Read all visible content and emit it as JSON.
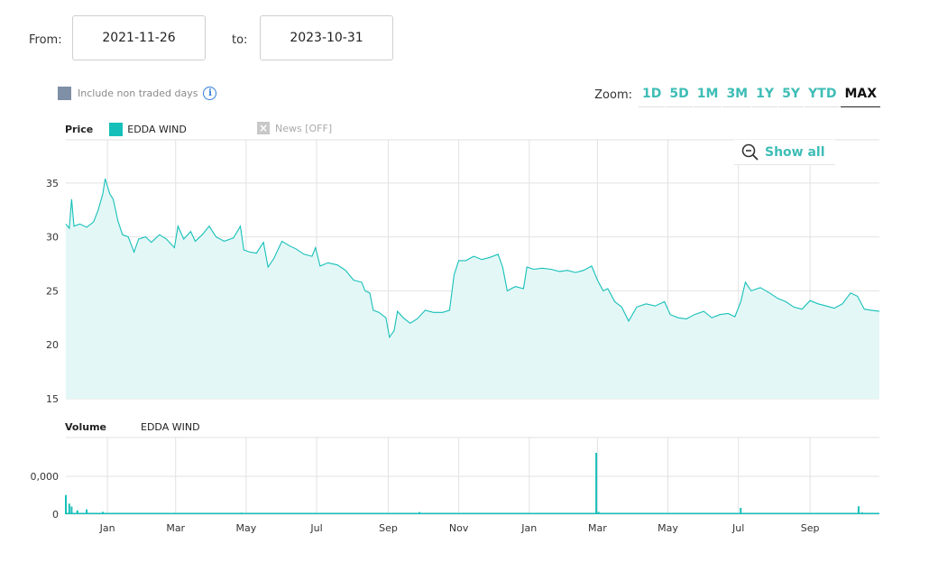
{
  "date_range": {
    "from_label": "From:",
    "from_value": "2021-11-26",
    "to_label": "to:",
    "to_value": "2023-10-31"
  },
  "options": {
    "non_traded_days_label": "Include non traded days",
    "info_icon": "info-icon"
  },
  "zoom": {
    "label": "Zoom:",
    "buttons": [
      "1D",
      "5D",
      "1M",
      "3M",
      "1Y",
      "5Y",
      "YTD",
      "MAX"
    ],
    "active": "MAX"
  },
  "legend": {
    "price_label": "Price",
    "series_name": "EDDA WIND",
    "news_label": "News [OFF]",
    "volume_label": "Volume",
    "volume_series_name": "EDDA WIND"
  },
  "show_all_label": "Show all",
  "colors": {
    "accent": "#3ebdb6",
    "line": "#16c0b9",
    "fill": "#e3f7f6"
  },
  "chart_data": [
    {
      "type": "area",
      "title": "Price",
      "series_name": "EDDA WIND",
      "ylim": [
        15,
        39
      ],
      "y_ticks": [
        15,
        20,
        25,
        30,
        35
      ],
      "x_tick_labels": [
        "Jan",
        "Mar",
        "May",
        "Jul",
        "Sep",
        "Nov",
        "Jan",
        "Mar",
        "May",
        "Jul",
        "Sep"
      ],
      "x_tick_dates": [
        "2022-01-01",
        "2022-03-01",
        "2022-05-01",
        "2022-07-01",
        "2022-09-01",
        "2022-11-01",
        "2023-01-01",
        "2023-03-01",
        "2023-05-01",
        "2023-07-01",
        "2023-09-01"
      ],
      "grid": true,
      "points": [
        [
          "2021-11-26",
          31.2
        ],
        [
          "2021-11-29",
          30.8
        ],
        [
          "2021-12-01",
          33.5
        ],
        [
          "2021-12-03",
          31.0
        ],
        [
          "2021-12-08",
          31.2
        ],
        [
          "2021-12-14",
          30.9
        ],
        [
          "2021-12-20",
          31.4
        ],
        [
          "2021-12-24",
          32.5
        ],
        [
          "2021-12-28",
          34.0
        ],
        [
          "2021-12-30",
          35.4
        ],
        [
          "2022-01-03",
          34.0
        ],
        [
          "2022-01-06",
          33.5
        ],
        [
          "2022-01-10",
          31.5
        ],
        [
          "2022-01-14",
          30.2
        ],
        [
          "2022-01-19",
          30.0
        ],
        [
          "2022-01-24",
          28.6
        ],
        [
          "2022-01-28",
          29.8
        ],
        [
          "2022-02-03",
          30.0
        ],
        [
          "2022-02-08",
          29.5
        ],
        [
          "2022-02-15",
          30.2
        ],
        [
          "2022-02-21",
          29.8
        ],
        [
          "2022-02-28",
          29.0
        ],
        [
          "2022-03-03",
          31.0
        ],
        [
          "2022-03-08",
          29.8
        ],
        [
          "2022-03-14",
          30.5
        ],
        [
          "2022-03-18",
          29.6
        ],
        [
          "2022-03-24",
          30.2
        ],
        [
          "2022-03-30",
          31.0
        ],
        [
          "2022-04-05",
          30.0
        ],
        [
          "2022-04-12",
          29.6
        ],
        [
          "2022-04-20",
          29.9
        ],
        [
          "2022-04-26",
          31.0
        ],
        [
          "2022-04-29",
          28.8
        ],
        [
          "2022-05-04",
          28.6
        ],
        [
          "2022-05-10",
          28.5
        ],
        [
          "2022-05-16",
          29.5
        ],
        [
          "2022-05-20",
          27.2
        ],
        [
          "2022-05-25",
          28.0
        ],
        [
          "2022-06-01",
          29.6
        ],
        [
          "2022-06-07",
          29.2
        ],
        [
          "2022-06-13",
          28.9
        ],
        [
          "2022-06-20",
          28.4
        ],
        [
          "2022-06-27",
          28.2
        ],
        [
          "2022-06-30",
          29.0
        ],
        [
          "2022-07-04",
          27.3
        ],
        [
          "2022-07-11",
          27.6
        ],
        [
          "2022-07-19",
          27.4
        ],
        [
          "2022-07-26",
          26.9
        ],
        [
          "2022-08-02",
          26.0
        ],
        [
          "2022-08-09",
          25.8
        ],
        [
          "2022-08-12",
          25.0
        ],
        [
          "2022-08-16",
          24.8
        ],
        [
          "2022-08-19",
          23.2
        ],
        [
          "2022-08-24",
          23.0
        ],
        [
          "2022-08-30",
          22.5
        ],
        [
          "2022-09-02",
          20.7
        ],
        [
          "2022-09-06",
          21.3
        ],
        [
          "2022-09-09",
          23.1
        ],
        [
          "2022-09-14",
          22.5
        ],
        [
          "2022-09-20",
          22.0
        ],
        [
          "2022-09-26",
          22.4
        ],
        [
          "2022-10-03",
          23.2
        ],
        [
          "2022-10-10",
          23.0
        ],
        [
          "2022-10-18",
          23.0
        ],
        [
          "2022-10-24",
          23.2
        ],
        [
          "2022-10-28",
          26.5
        ],
        [
          "2022-11-01",
          27.8
        ],
        [
          "2022-11-07",
          27.8
        ],
        [
          "2022-11-14",
          28.2
        ],
        [
          "2022-11-21",
          27.9
        ],
        [
          "2022-11-28",
          28.1
        ],
        [
          "2022-12-05",
          28.4
        ],
        [
          "2022-12-09",
          27.2
        ],
        [
          "2022-12-13",
          25.0
        ],
        [
          "2022-12-20",
          25.4
        ],
        [
          "2022-12-27",
          25.2
        ],
        [
          "2022-12-30",
          27.2
        ],
        [
          "2023-01-05",
          27.0
        ],
        [
          "2023-01-12",
          27.1
        ],
        [
          "2023-01-20",
          27.0
        ],
        [
          "2023-01-27",
          26.8
        ],
        [
          "2023-02-03",
          26.9
        ],
        [
          "2023-02-10",
          26.7
        ],
        [
          "2023-02-17",
          26.9
        ],
        [
          "2023-02-24",
          27.3
        ],
        [
          "2023-03-01",
          26.0
        ],
        [
          "2023-03-06",
          25.0
        ],
        [
          "2023-03-10",
          25.2
        ],
        [
          "2023-03-16",
          24.0
        ],
        [
          "2023-03-22",
          23.5
        ],
        [
          "2023-03-28",
          22.2
        ],
        [
          "2023-04-04",
          23.5
        ],
        [
          "2023-04-12",
          23.8
        ],
        [
          "2023-04-20",
          23.6
        ],
        [
          "2023-04-28",
          24.0
        ],
        [
          "2023-05-03",
          22.8
        ],
        [
          "2023-05-10",
          22.5
        ],
        [
          "2023-05-17",
          22.4
        ],
        [
          "2023-05-24",
          22.8
        ],
        [
          "2023-06-01",
          23.1
        ],
        [
          "2023-06-08",
          22.5
        ],
        [
          "2023-06-15",
          22.8
        ],
        [
          "2023-06-22",
          22.9
        ],
        [
          "2023-06-28",
          22.6
        ],
        [
          "2023-07-03",
          24.0
        ],
        [
          "2023-07-07",
          25.8
        ],
        [
          "2023-07-12",
          25.0
        ],
        [
          "2023-07-20",
          25.3
        ],
        [
          "2023-07-28",
          24.8
        ],
        [
          "2023-08-04",
          24.3
        ],
        [
          "2023-08-11",
          24.0
        ],
        [
          "2023-08-18",
          23.5
        ],
        [
          "2023-08-25",
          23.3
        ],
        [
          "2023-09-01",
          24.1
        ],
        [
          "2023-09-08",
          23.8
        ],
        [
          "2023-09-15",
          23.6
        ],
        [
          "2023-09-22",
          23.4
        ],
        [
          "2023-09-29",
          23.8
        ],
        [
          "2023-10-06",
          24.8
        ],
        [
          "2023-10-12",
          24.5
        ],
        [
          "2023-10-18",
          23.3
        ],
        [
          "2023-10-24",
          23.2
        ],
        [
          "2023-10-31",
          23.1
        ]
      ]
    },
    {
      "type": "bar",
      "title": "Volume",
      "series_name": "EDDA WIND",
      "y_tick_labels": [
        "0",
        "0,000"
      ],
      "grid": true,
      "spikes": [
        [
          "2021-11-26",
          1.0
        ],
        [
          "2021-11-29",
          0.55
        ],
        [
          "2021-12-01",
          0.4
        ],
        [
          "2021-12-06",
          0.2
        ],
        [
          "2021-12-14",
          0.25
        ],
        [
          "2021-12-28",
          0.12
        ],
        [
          "2022-01-10",
          0.06
        ],
        [
          "2022-03-18",
          0.07
        ],
        [
          "2022-04-27",
          0.08
        ],
        [
          "2022-08-08",
          0.06
        ],
        [
          "2022-09-02",
          0.07
        ],
        [
          "2022-09-28",
          0.11
        ],
        [
          "2023-01-18",
          0.05
        ],
        [
          "2023-02-28",
          3.2
        ],
        [
          "2023-03-02",
          0.12
        ],
        [
          "2023-04-28",
          0.06
        ],
        [
          "2023-07-03",
          0.33
        ],
        [
          "2023-08-04",
          0.07
        ],
        [
          "2023-10-13",
          0.41
        ],
        [
          "2023-10-16",
          0.09
        ]
      ],
      "baseline": 0.03
    }
  ]
}
